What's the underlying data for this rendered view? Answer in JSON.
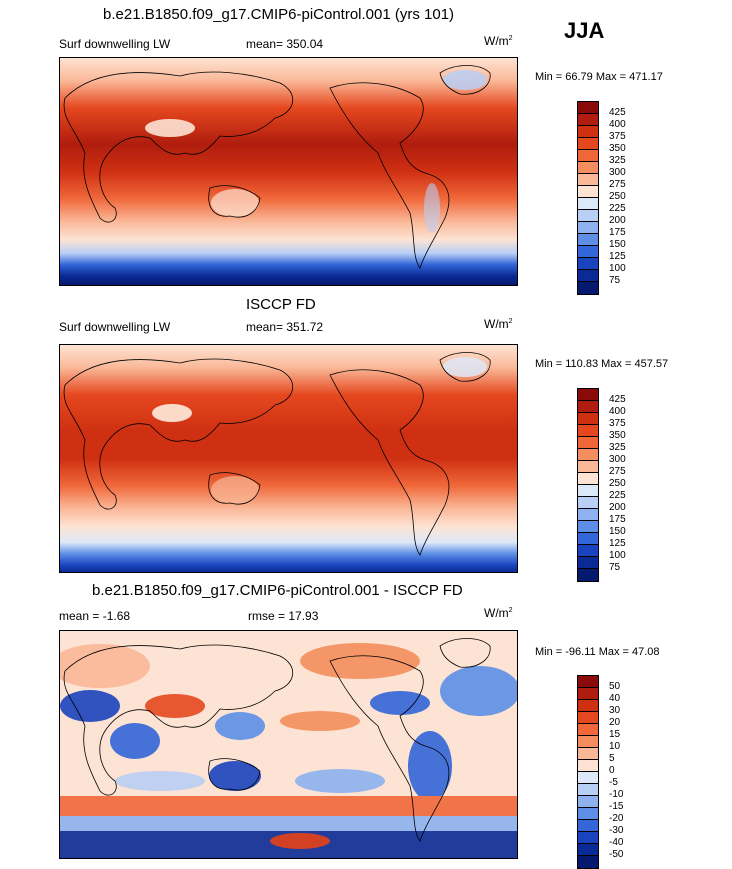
{
  "season": "JJA",
  "panels": [
    {
      "title": "b.e21.B1850.f09_g17.CMIP6-piControl.001 (yrs 101)",
      "left_label": "Surf downwelling LW",
      "center_label": "mean= 350.04",
      "units": "W/m",
      "units_sup": "2",
      "minmax": "Min =  66.79 Max = 471.17",
      "colorbar_labels": [
        "425",
        "400",
        "375",
        "350",
        "325",
        "300",
        "275",
        "250",
        "225",
        "200",
        "175",
        "150",
        "125",
        "100",
        "75"
      ]
    },
    {
      "title": "ISCCP FD",
      "left_label": "Surf downwelling LW",
      "center_label": "mean= 351.72",
      "units": "W/m",
      "units_sup": "2",
      "minmax": "Min = 110.83 Max = 457.57",
      "colorbar_labels": [
        "425",
        "400",
        "375",
        "350",
        "325",
        "300",
        "275",
        "250",
        "225",
        "200",
        "175",
        "150",
        "125",
        "100",
        "75"
      ]
    },
    {
      "title": "b.e21.B1850.f09_g17.CMIP6-piControl.001 - ISCCP FD",
      "left_label": "mean =  -1.68",
      "center_label": "rmse =  17.93",
      "units": "W/m",
      "units_sup": "2",
      "minmax": "Min = -96.11 Max =  47.08",
      "colorbar_labels": [
        "50",
        "40",
        "30",
        "20",
        "15",
        "10",
        "5",
        "0",
        "-5",
        "-10",
        "-15",
        "-20",
        "-30",
        "-40",
        "-50"
      ]
    }
  ],
  "colorbar_colors": [
    "#8b0a0a",
    "#b01d0e",
    "#cf3012",
    "#e5481f",
    "#f0683a",
    "#f58e5e",
    "#fab898",
    "#fde3d3",
    "#dde8f8",
    "#b9cff5",
    "#8db2ef",
    "#5d8fe6",
    "#3366d8",
    "#1a44bf",
    "#0a2a96",
    "#051a6e"
  ],
  "chart_data": [
    {
      "type": "heatmap",
      "title": "b.e21.B1850.f09_g17.CMIP6-piControl.001 (yrs 101)",
      "variable": "Surf downwelling LW",
      "units": "W/m2",
      "season": "JJA",
      "mean": 350.04,
      "min": 66.79,
      "max": 471.17,
      "levels": [
        75,
        100,
        125,
        150,
        175,
        200,
        225,
        250,
        275,
        300,
        325,
        350,
        375,
        400,
        425
      ]
    },
    {
      "type": "heatmap",
      "title": "ISCCP FD",
      "variable": "Surf downwelling LW",
      "units": "W/m2",
      "season": "JJA",
      "mean": 351.72,
      "min": 110.83,
      "max": 457.57,
      "levels": [
        75,
        100,
        125,
        150,
        175,
        200,
        225,
        250,
        275,
        300,
        325,
        350,
        375,
        400,
        425
      ]
    },
    {
      "type": "heatmap",
      "title": "b.e21.B1850.f09_g17.CMIP6-piControl.001 - ISCCP FD",
      "units": "W/m2",
      "season": "JJA",
      "mean": -1.68,
      "rmse": 17.93,
      "min": -96.11,
      "max": 47.08,
      "levels": [
        -50,
        -40,
        -30,
        -20,
        -15,
        -10,
        -5,
        0,
        5,
        10,
        15,
        20,
        30,
        40,
        50
      ]
    }
  ]
}
